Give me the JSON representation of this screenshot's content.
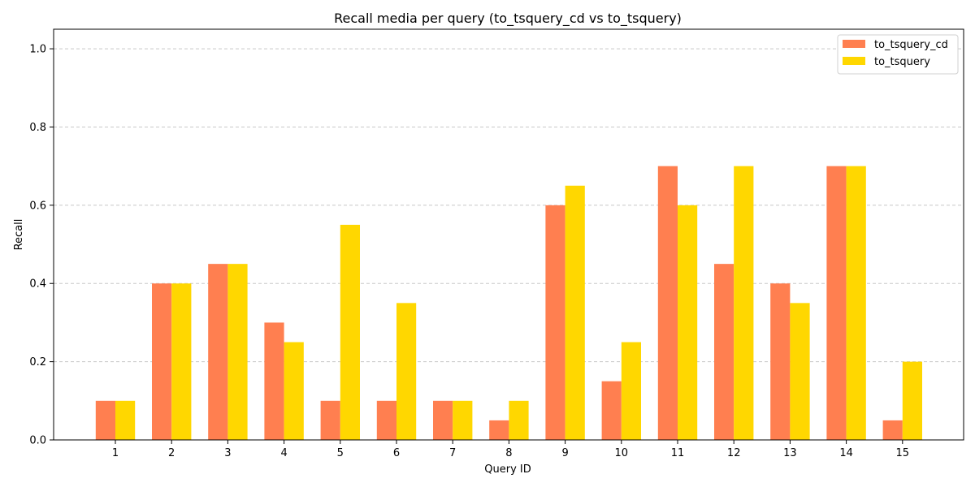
{
  "chart_data": {
    "type": "bar",
    "title": "Recall media per query (to_tsquery_cd vs to_tsquery)",
    "xlabel": "Query ID",
    "ylabel": "Recall",
    "categories": [
      "1",
      "2",
      "3",
      "4",
      "5",
      "6",
      "7",
      "8",
      "9",
      "10",
      "11",
      "12",
      "13",
      "14",
      "15"
    ],
    "series": [
      {
        "name": "to_tsquery_cd",
        "color": "#FF7F50",
        "values": [
          0.1,
          0.4,
          0.45,
          0.3,
          0.1,
          0.1,
          0.1,
          0.05,
          0.6,
          0.15,
          0.7,
          0.45,
          0.4,
          0.7,
          0.05
        ]
      },
      {
        "name": "to_tsquery",
        "color": "#FFD700",
        "values": [
          0.1,
          0.4,
          0.45,
          0.25,
          0.55,
          0.35,
          0.1,
          0.1,
          0.65,
          0.25,
          0.6,
          0.7,
          0.35,
          0.7,
          0.2
        ]
      }
    ],
    "ylim": [
      0,
      1.05
    ],
    "yticks": [
      "0.0",
      "0.2",
      "0.4",
      "0.6",
      "0.8",
      "1.0"
    ],
    "grid": "y-dashed",
    "legend": "top-right"
  }
}
